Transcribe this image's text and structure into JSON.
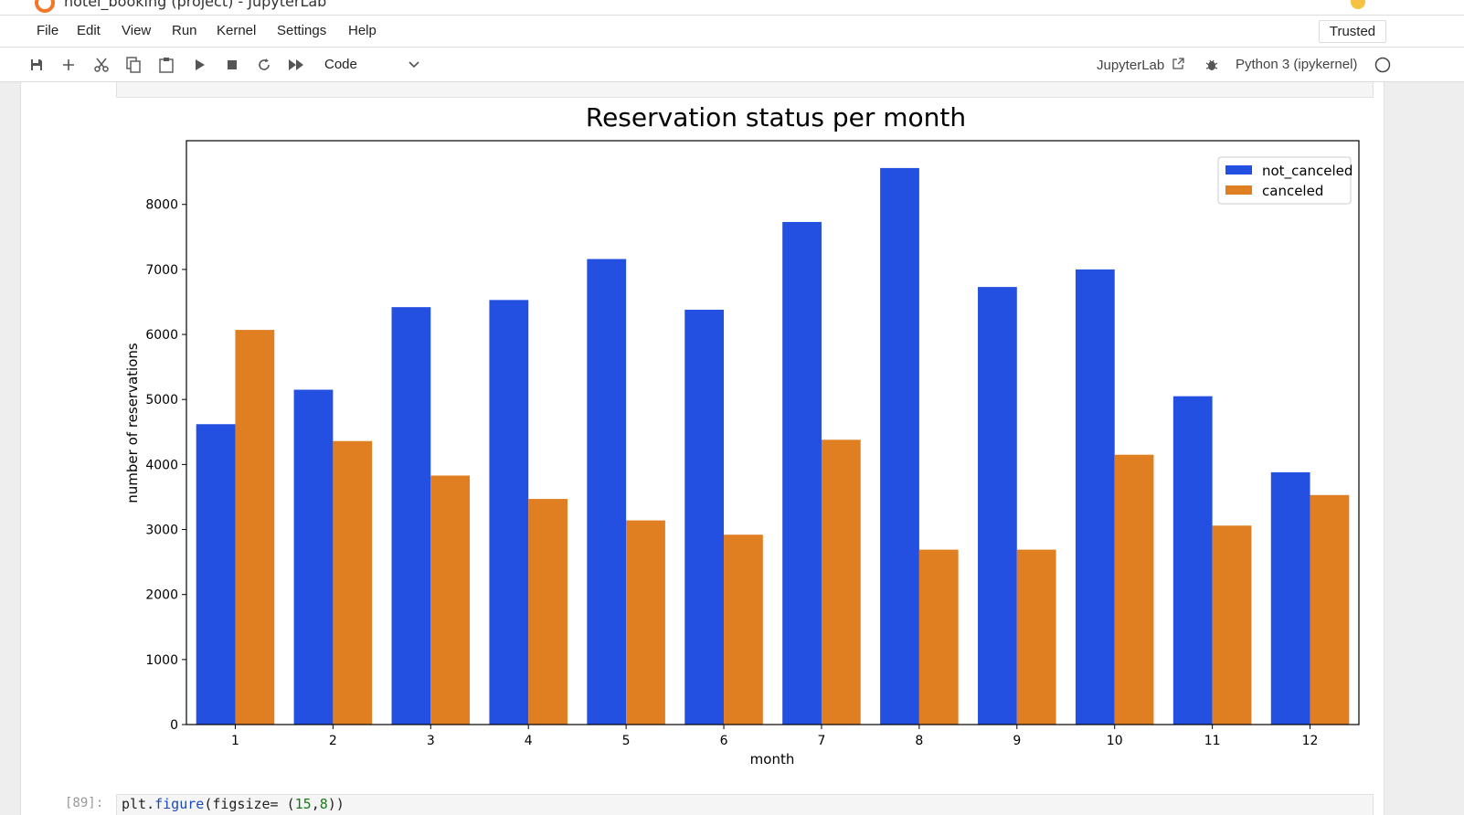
{
  "window": {
    "title_fragment": "hotel_booking (project) - JupyterLab"
  },
  "menu": {
    "items": [
      "File",
      "Edit",
      "View",
      "Run",
      "Kernel",
      "Settings",
      "Help"
    ],
    "trusted_label": "Trusted"
  },
  "toolbar": {
    "icons": [
      "save-icon",
      "add-icon",
      "cut-icon",
      "copy-icon",
      "paste-icon",
      "run-icon",
      "stop-icon",
      "restart-icon",
      "fast-forward-icon"
    ],
    "cell_type": "Code",
    "jupyterlab_label": "JupyterLab",
    "kernel_label": "Python 3 (ipykernel)"
  },
  "chart_data": {
    "type": "bar",
    "title": "Reservation status per month",
    "xlabel": "month",
    "ylabel": "number of reservations",
    "categories": [
      "1",
      "2",
      "3",
      "4",
      "5",
      "6",
      "7",
      "8",
      "9",
      "10",
      "11",
      "12"
    ],
    "series": [
      {
        "name": "not_canceled",
        "color": "#2350e0",
        "values": [
          4620,
          5150,
          6420,
          6530,
          7160,
          6380,
          7730,
          8560,
          6730,
          7000,
          5050,
          3880
        ]
      },
      {
        "name": "canceled",
        "color": "#e07e22",
        "values": [
          6070,
          4360,
          3830,
          3470,
          3140,
          2920,
          4380,
          2690,
          2690,
          4150,
          3060,
          3530
        ]
      }
    ],
    "ylim": [
      0,
      8980
    ],
    "yticks": [
      0,
      1000,
      2000,
      3000,
      4000,
      5000,
      6000,
      7000,
      8000
    ],
    "legend_position": "top-right",
    "grid": false
  },
  "next_cell": {
    "prompt": "[89]:",
    "code_start": "plt.figure(figsize= (15,8))"
  }
}
